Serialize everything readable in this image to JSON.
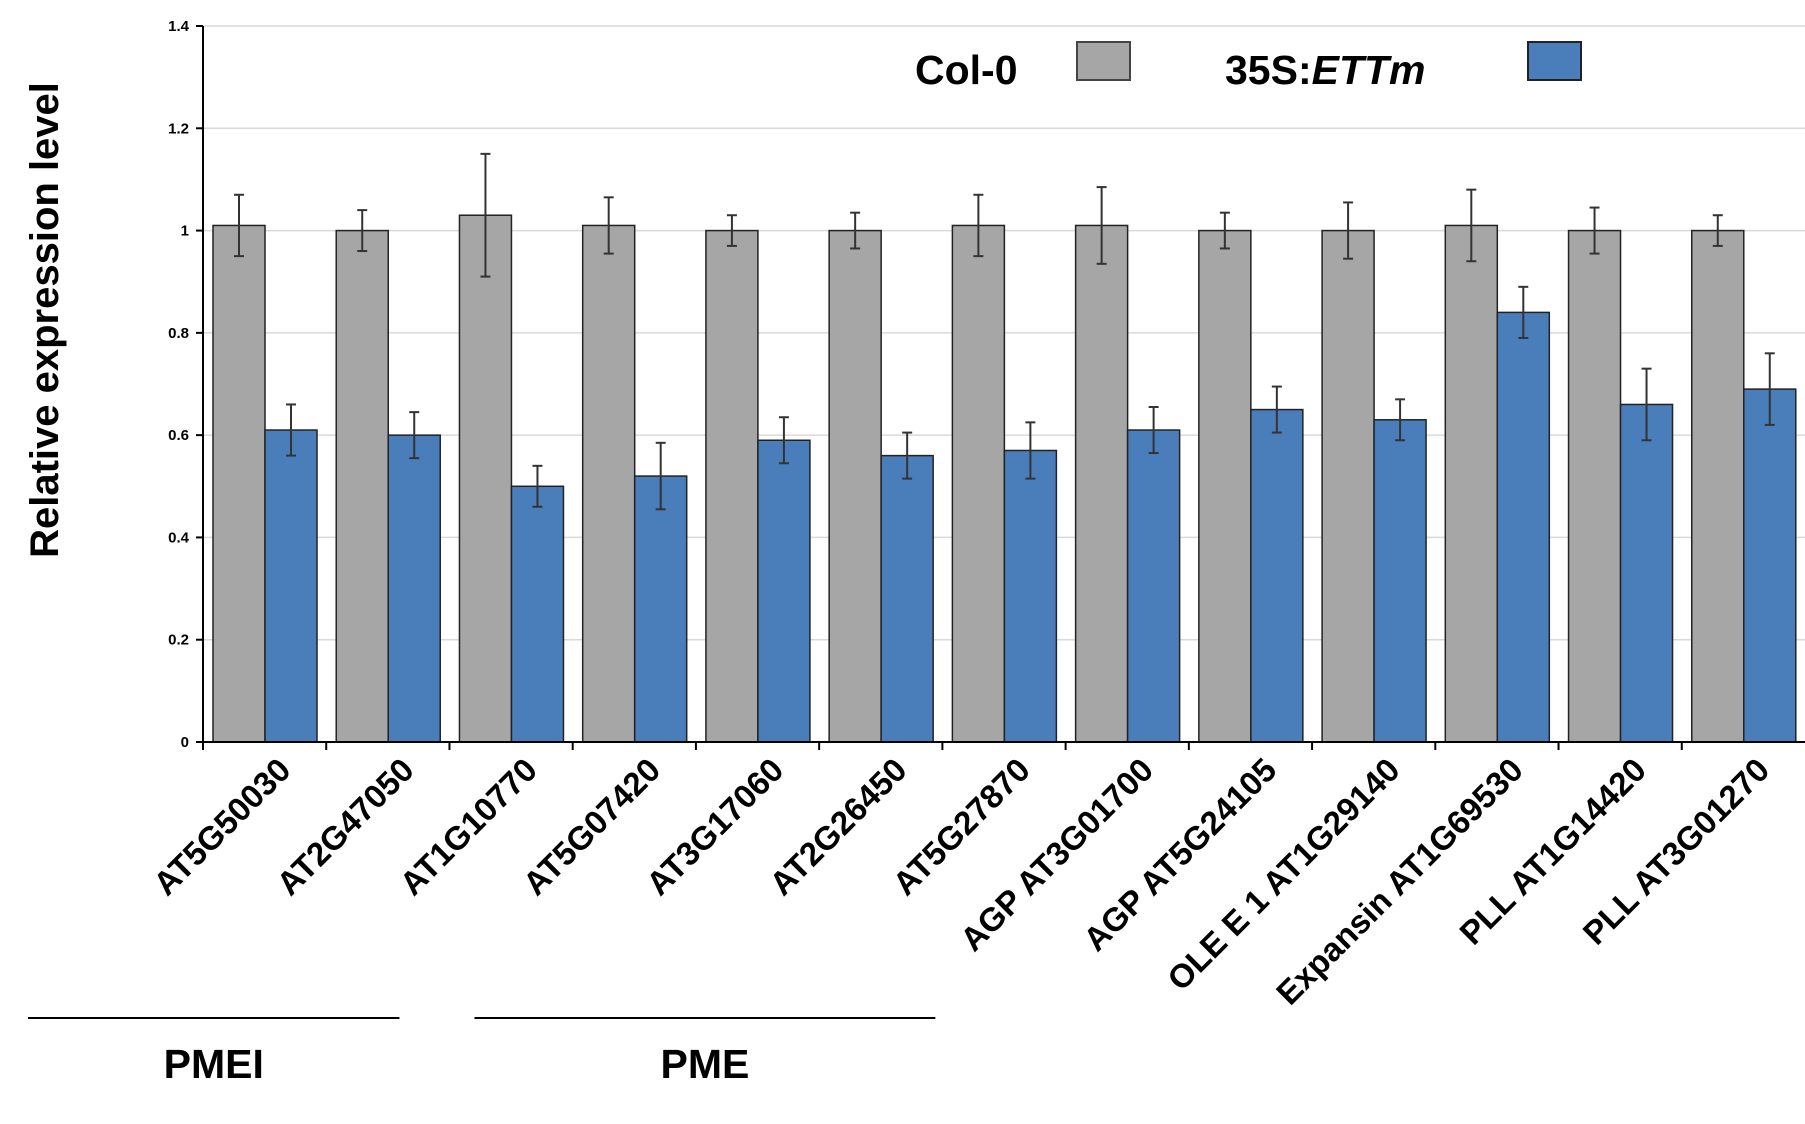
{
  "chart_data": {
    "type": "bar",
    "ylabel": "Relative expression level",
    "ylim": [
      0,
      1.4
    ],
    "yticks": [
      "0",
      "0.2",
      "0.4",
      "0.6",
      "0.8",
      "1",
      "1.2",
      "1.4"
    ],
    "grid": true,
    "legend_position": "top-right",
    "categories": [
      "AT5G50030",
      "AT2G47050",
      "AT1G10770",
      "AT5G07420",
      "AT3G17060",
      "AT2G26450",
      "AT5G27870",
      "AGP AT3G01700",
      "AGP AT5G24105",
      "OLE E 1  AT1G29140",
      "Expansin AT1G69530",
      "PLL AT1G14420",
      "PLL AT3G01270"
    ],
    "series": [
      {
        "name": "Col-0",
        "color": "#a6a6a6",
        "values": [
          1.01,
          1.0,
          1.03,
          1.01,
          1.0,
          1.0,
          1.01,
          1.01,
          1.0,
          1.0,
          1.01,
          1.0,
          1.0
        ],
        "errors": [
          0.06,
          0.04,
          0.12,
          0.055,
          0.03,
          0.035,
          0.06,
          0.075,
          0.035,
          0.055,
          0.07,
          0.045,
          0.03
        ]
      },
      {
        "name_parts": [
          "35S:",
          "ETTm"
        ],
        "color": "#4a7ebb",
        "values": [
          0.61,
          0.6,
          0.5,
          0.52,
          0.59,
          0.56,
          0.57,
          0.61,
          0.65,
          0.63,
          0.84,
          0.66,
          0.69
        ],
        "errors": [
          0.05,
          0.045,
          0.04,
          0.065,
          0.045,
          0.045,
          0.055,
          0.045,
          0.045,
          0.04,
          0.05,
          0.07,
          0.07
        ]
      }
    ],
    "groups": [
      {
        "label": "PMEI",
        "from": 0,
        "to": 1
      },
      {
        "label": "PME",
        "from": 2,
        "to": 5
      }
    ]
  }
}
